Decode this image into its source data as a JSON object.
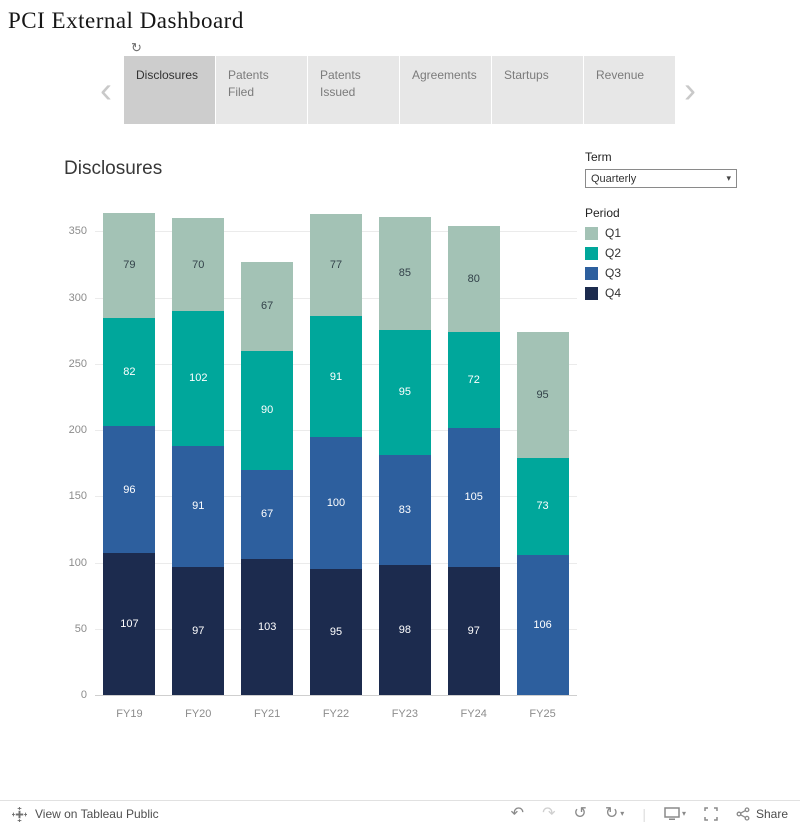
{
  "header": {
    "title": "PCI External Dashboard"
  },
  "tabs": {
    "items": [
      {
        "label": "Disclosures",
        "selected": true
      },
      {
        "label": "Patents Filed",
        "selected": false
      },
      {
        "label": "Patents Issued",
        "selected": false
      },
      {
        "label": "Agreements",
        "selected": false
      },
      {
        "label": "Startups",
        "selected": false
      },
      {
        "label": "Revenue",
        "selected": false
      }
    ]
  },
  "controls": {
    "term_label": "Term",
    "term_value": "Quarterly"
  },
  "legend": {
    "title": "Period",
    "items": [
      {
        "label": "Q1",
        "color": "#a3c2b5"
      },
      {
        "label": "Q2",
        "color": "#00a79b"
      },
      {
        "label": "Q3",
        "color": "#2d5f9e"
      },
      {
        "label": "Q4",
        "color": "#1c2b4e"
      }
    ]
  },
  "chart_data": {
    "type": "bar",
    "stacked": true,
    "title": "Disclosures",
    "categories": [
      "FY19",
      "FY20",
      "FY21",
      "FY22",
      "FY23",
      "FY24",
      "FY25"
    ],
    "series": [
      {
        "name": "Q4",
        "color": "#1c2b4e",
        "label_color": "#ffffff",
        "values": [
          107,
          97,
          103,
          95,
          98,
          97,
          null
        ]
      },
      {
        "name": "Q3",
        "color": "#2d5f9e",
        "label_color": "#ffffff",
        "values": [
          96,
          91,
          67,
          100,
          83,
          105,
          106
        ]
      },
      {
        "name": "Q2",
        "color": "#00a79b",
        "label_color": "#ffffff",
        "values": [
          82,
          102,
          90,
          91,
          95,
          72,
          73
        ]
      },
      {
        "name": "Q1",
        "color": "#a3c2b5",
        "label_color": "#33424a",
        "values": [
          79,
          70,
          67,
          77,
          85,
          80,
          95
        ]
      }
    ],
    "ylim": [
      0,
      370
    ],
    "yticks": [
      0,
      50,
      100,
      150,
      200,
      250,
      300,
      350
    ],
    "grid": true,
    "legend_position": "right"
  },
  "toolbar": {
    "view_label": "View on Tableau Public",
    "share_label": "Share"
  }
}
